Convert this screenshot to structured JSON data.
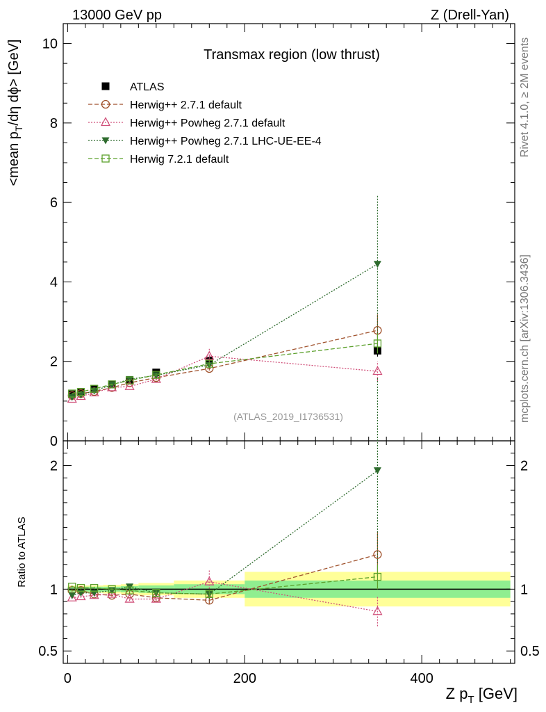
{
  "header": {
    "left": "13000 GeV pp",
    "right": "Z (Drell-Yan)"
  },
  "side_text": {
    "rivet": "Rivet 4.1.0, ≥ 2M events",
    "mcplots": "mcplots.cern.ch [arXiv:1306.3436]"
  },
  "chart_data": [
    {
      "panel": "main",
      "type": "scatter",
      "title": "Transmax region (low thrust)",
      "watermark": "(ATLAS_2019_I1736531)",
      "ylabel": "<mean p_T/dη dϕ> [GeV]",
      "xlim": [
        -5,
        505
      ],
      "ylim": [
        0,
        10.5
      ],
      "yticks": [
        0,
        2,
        4,
        6,
        8,
        10
      ],
      "x": [
        5,
        15,
        30,
        50,
        70,
        100,
        160,
        350
      ],
      "series": [
        {
          "name": "ATLAS",
          "color": "#000000",
          "marker": "square-filled",
          "line": "none",
          "values": [
            1.17,
            1.22,
            1.3,
            1.42,
            1.52,
            1.72,
            2.02,
            2.27
          ],
          "errors": [
            0.02,
            0.02,
            0.02,
            0.03,
            0.04,
            0.05,
            0.08,
            0.15
          ]
        },
        {
          "name": "Herwig++ 2.7.1 default",
          "color": "#a0522d",
          "marker": "circle-open",
          "line": "dashed",
          "values": [
            1.14,
            1.19,
            1.24,
            1.34,
            1.46,
            1.59,
            1.82,
            2.78
          ],
          "errors": [
            0.01,
            0.01,
            0.01,
            0.01,
            0.02,
            0.03,
            0.05,
            0.4
          ]
        },
        {
          "name": "Herwig++ Powheg 2.7.1 default",
          "color": "#d0507a",
          "marker": "triangle-open",
          "line": "dotted",
          "values": [
            1.05,
            1.12,
            1.21,
            1.34,
            1.37,
            1.55,
            2.13,
            1.75
          ],
          "errors": [
            0.01,
            0.01,
            0.01,
            0.02,
            0.02,
            0.03,
            0.2,
            0.25
          ]
        },
        {
          "name": "Herwig++ Powheg 2.7.1 LHC-UE-EE-4",
          "color": "#2e6b2e",
          "marker": "triangle-down-filled",
          "line": "dotted",
          "values": [
            1.1,
            1.16,
            1.26,
            1.41,
            1.55,
            1.65,
            1.91,
            4.45
          ],
          "errors": [
            0.01,
            0.01,
            0.01,
            0.02,
            0.03,
            0.04,
            0.08,
            1.75
          ]
        },
        {
          "name": "Herwig 7.2.1 default",
          "color": "#5ca02c",
          "marker": "square-open",
          "line": "dashed",
          "values": [
            1.19,
            1.23,
            1.31,
            1.42,
            1.52,
            1.66,
            1.94,
            2.45
          ],
          "errors": [
            0.01,
            0.01,
            0.01,
            0.02,
            0.03,
            0.04,
            0.06,
            0.25
          ]
        }
      ]
    },
    {
      "panel": "ratio",
      "type": "scatter",
      "ylabel": "Ratio to ATLAS",
      "xlabel": "Z p_T [GeV]",
      "xlim": [
        -5,
        505
      ],
      "ylim": [
        0.4,
        2.2
      ],
      "yticks": [
        0.5,
        1,
        2
      ],
      "ytick_labels": [
        "0.5",
        "1",
        "2"
      ],
      "xticks": [
        0,
        200,
        400
      ],
      "bands": {
        "bins": [
          [
            0,
            10
          ],
          [
            10,
            20
          ],
          [
            20,
            40
          ],
          [
            40,
            60
          ],
          [
            60,
            80
          ],
          [
            80,
            120
          ],
          [
            120,
            200
          ],
          [
            200,
            500
          ]
        ],
        "inner": [
          0.02,
          0.02,
          0.02,
          0.02,
          0.025,
          0.03,
          0.04,
          0.07
        ],
        "outer": [
          0.03,
          0.03,
          0.03,
          0.035,
          0.04,
          0.05,
          0.07,
          0.14
        ],
        "inner_color": "#90ee90",
        "outer_color": "#ffff99"
      },
      "x": [
        5,
        15,
        30,
        50,
        70,
        100,
        160,
        350
      ],
      "series": [
        {
          "name": "Herwig++ 2.7.1 default",
          "values": [
            0.99,
            0.99,
            0.96,
            0.95,
            0.96,
            0.93,
            0.91,
            1.28
          ],
          "errors": [
            0.01,
            0.01,
            0.01,
            0.01,
            0.015,
            0.02,
            0.03,
            0.18
          ]
        },
        {
          "name": "Herwig++ Powheg 2.7.1 default",
          "values": [
            0.93,
            0.94,
            0.95,
            0.96,
            0.92,
            0.92,
            1.06,
            0.82
          ],
          "errors": [
            0.01,
            0.01,
            0.01,
            0.01,
            0.015,
            0.02,
            0.1,
            0.12
          ]
        },
        {
          "name": "Herwig++ Powheg 2.7.1 LHC-UE-EE-4",
          "values": [
            0.95,
            0.97,
            0.97,
            0.99,
            1.02,
            0.97,
            0.96,
            1.96
          ],
          "errors": [
            0.01,
            0.01,
            0.01,
            0.01,
            0.02,
            0.02,
            0.04,
            0.75
          ]
        },
        {
          "name": "Herwig 7.2.1 default",
          "values": [
            1.02,
            1.01,
            1.01,
            1.0,
            0.99,
            0.97,
            0.96,
            1.1
          ],
          "errors": [
            0.01,
            0.01,
            0.01,
            0.01,
            0.015,
            0.02,
            0.03,
            0.1
          ]
        }
      ]
    }
  ]
}
